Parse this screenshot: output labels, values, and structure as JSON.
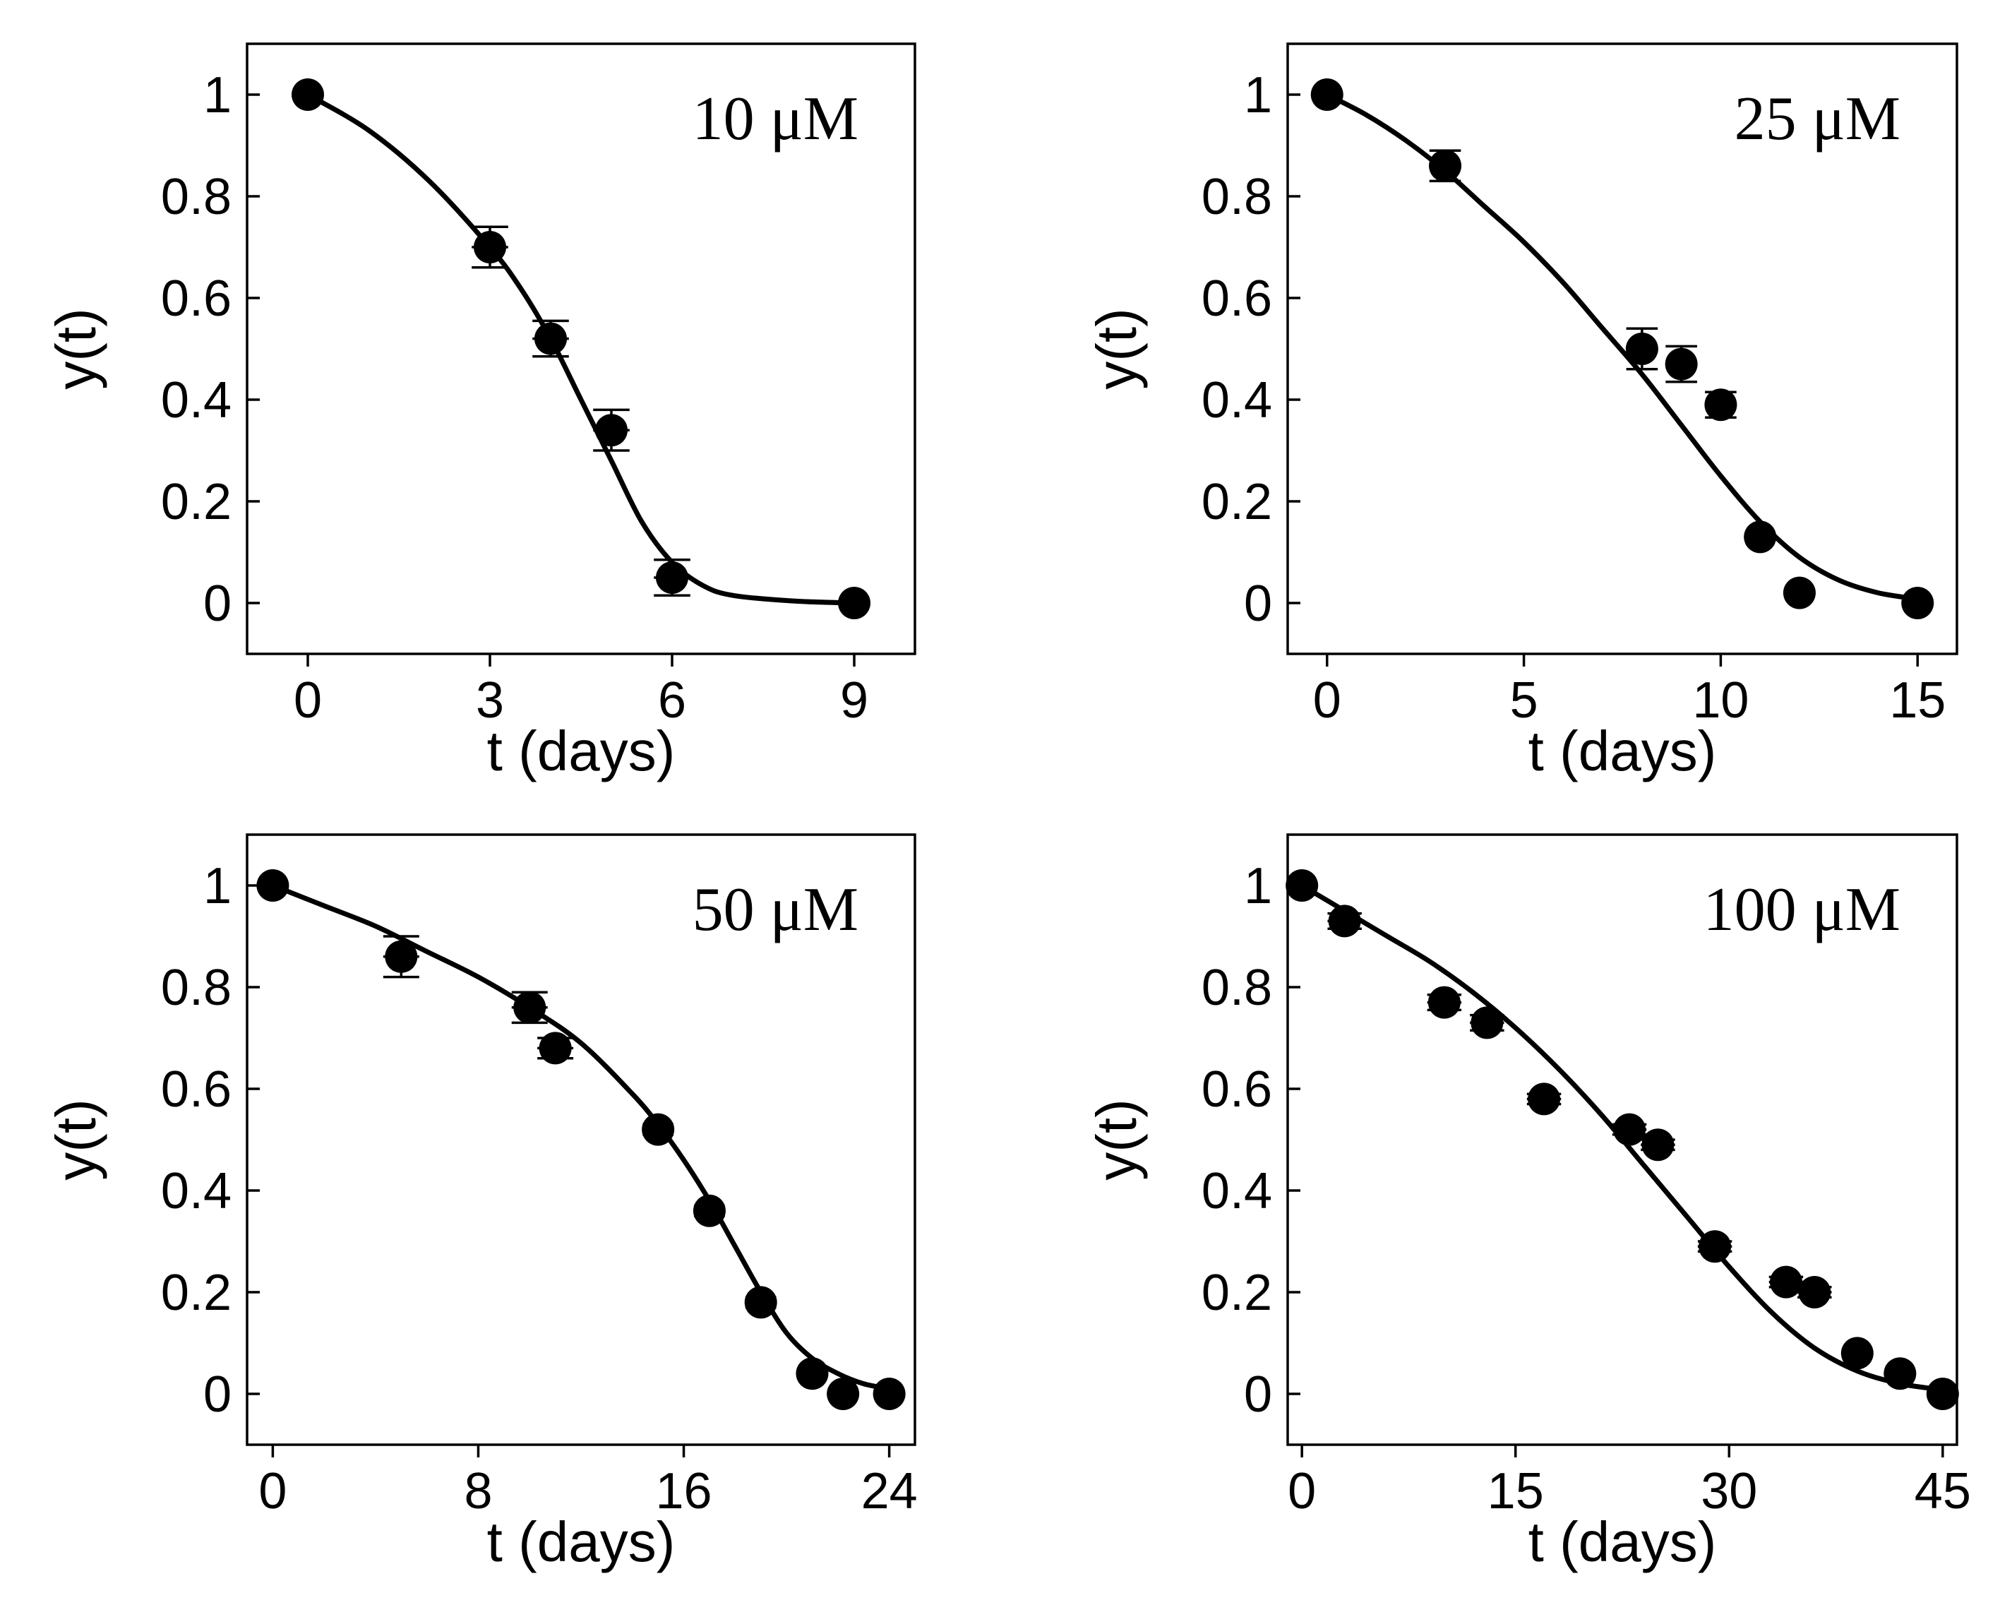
{
  "figure": {
    "description": ""
  },
  "chart_data": [
    {
      "type": "scatter",
      "title": "10 μM",
      "xlabel": "t (days)",
      "ylabel": "y(t)",
      "xlim": [
        -1,
        10
      ],
      "ylim": [
        -0.1,
        1.1
      ],
      "xticks": [
        0,
        3,
        6,
        9
      ],
      "yticks": [
        0,
        0.2,
        0.4,
        0.6,
        0.8,
        1
      ],
      "ytick_labels": [
        "0",
        "0.2",
        "0.4",
        "0.6",
        "0.8",
        "1"
      ],
      "points": [
        {
          "x": 0,
          "y": 1.0,
          "xerr": 0,
          "yerr": 0.005
        },
        {
          "x": 3,
          "y": 0.7,
          "xerr": 0.3,
          "yerr": 0.04
        },
        {
          "x": 4,
          "y": 0.52,
          "xerr": 0.3,
          "yerr": 0.035
        },
        {
          "x": 5,
          "y": 0.34,
          "xerr": 0.3,
          "yerr": 0.04
        },
        {
          "x": 6,
          "y": 0.05,
          "xerr": 0.3,
          "yerr": 0.035
        },
        {
          "x": 9,
          "y": 0.0,
          "xerr": 0.15,
          "yerr": 0.005
        }
      ],
      "fit": {
        "x": [
          0,
          1,
          2,
          3,
          3.5,
          4,
          4.5,
          5,
          5.5,
          6,
          6.5,
          7,
          8,
          9
        ],
        "y": [
          1.0,
          0.93,
          0.83,
          0.7,
          0.62,
          0.52,
          0.4,
          0.28,
          0.16,
          0.08,
          0.035,
          0.015,
          0.004,
          0.0
        ]
      }
    },
    {
      "type": "scatter",
      "title": "25 μM",
      "xlabel": "t (days)",
      "ylabel": "y(t)",
      "xlim": [
        -1,
        16
      ],
      "ylim": [
        -0.1,
        1.1
      ],
      "xticks": [
        0,
        5,
        10,
        15
      ],
      "yticks": [
        0,
        0.2,
        0.4,
        0.6,
        0.8,
        1
      ],
      "ytick_labels": [
        "0",
        "0.2",
        "0.4",
        "0.6",
        "0.8",
        "1"
      ],
      "points": [
        {
          "x": 0,
          "y": 1.0,
          "xerr": 0,
          "yerr": 0.005
        },
        {
          "x": 3,
          "y": 0.86,
          "xerr": 0.4,
          "yerr": 0.03
        },
        {
          "x": 8,
          "y": 0.5,
          "xerr": 0.4,
          "yerr": 0.04
        },
        {
          "x": 9,
          "y": 0.47,
          "xerr": 0.4,
          "yerr": 0.035
        },
        {
          "x": 10,
          "y": 0.39,
          "xerr": 0.4,
          "yerr": 0.025
        },
        {
          "x": 11,
          "y": 0.13,
          "xerr": 0.3,
          "yerr": 0.01
        },
        {
          "x": 12,
          "y": 0.02,
          "xerr": 0.3,
          "yerr": 0.008
        },
        {
          "x": 15,
          "y": 0.0,
          "xerr": 0.2,
          "yerr": 0.005
        }
      ],
      "fit": {
        "x": [
          0,
          1,
          2,
          3,
          4,
          5,
          6,
          7,
          8,
          9,
          10,
          11,
          12,
          13,
          14,
          15
        ],
        "y": [
          1.0,
          0.96,
          0.91,
          0.85,
          0.78,
          0.71,
          0.63,
          0.54,
          0.45,
          0.35,
          0.25,
          0.16,
          0.09,
          0.045,
          0.02,
          0.008
        ]
      }
    },
    {
      "type": "scatter",
      "title": "50 μM",
      "xlabel": "t (days)",
      "ylabel": "y(t)",
      "xlim": [
        -1,
        25
      ],
      "ylim": [
        -0.1,
        1.1
      ],
      "xticks": [
        0,
        8,
        16,
        24
      ],
      "yticks": [
        0,
        0.2,
        0.4,
        0.6,
        0.8,
        1
      ],
      "ytick_labels": [
        "0",
        "0.2",
        "0.4",
        "0.6",
        "0.8",
        "1"
      ],
      "points": [
        {
          "x": 0,
          "y": 1.0,
          "xerr": 0,
          "yerr": 0.005
        },
        {
          "x": 5,
          "y": 0.86,
          "xerr": 0.7,
          "yerr": 0.04
        },
        {
          "x": 10,
          "y": 0.76,
          "xerr": 0.7,
          "yerr": 0.03
        },
        {
          "x": 11,
          "y": 0.68,
          "xerr": 0.7,
          "yerr": 0.02
        },
        {
          "x": 15,
          "y": 0.52,
          "xerr": 0.6,
          "yerr": 0.01
        },
        {
          "x": 17,
          "y": 0.36,
          "xerr": 0.6,
          "yerr": 0.01
        },
        {
          "x": 19,
          "y": 0.18,
          "xerr": 0.6,
          "yerr": 0.01
        },
        {
          "x": 21,
          "y": 0.04,
          "xerr": 0.5,
          "yerr": 0.008
        },
        {
          "x": 22.2,
          "y": 0.0,
          "xerr": 0.4,
          "yerr": 0.005
        },
        {
          "x": 24,
          "y": 0.0,
          "xerr": 0.3,
          "yerr": 0.005
        }
      ],
      "fit": {
        "x": [
          0,
          2,
          4,
          6,
          8,
          10,
          12,
          14,
          15,
          16,
          17,
          18,
          19,
          20,
          21,
          22,
          23,
          24
        ],
        "y": [
          1.0,
          0.96,
          0.92,
          0.87,
          0.82,
          0.76,
          0.69,
          0.59,
          0.53,
          0.46,
          0.38,
          0.29,
          0.2,
          0.12,
          0.07,
          0.04,
          0.02,
          0.01
        ]
      }
    },
    {
      "type": "scatter",
      "title": "100 μM",
      "xlabel": "t (days)",
      "ylabel": "y(t)",
      "xlim": [
        -1,
        46
      ],
      "ylim": [
        -0.1,
        1.1
      ],
      "xticks": [
        0,
        15,
        30,
        45
      ],
      "yticks": [
        0,
        0.2,
        0.4,
        0.6,
        0.8,
        1
      ],
      "ytick_labels": [
        "0",
        "0.2",
        "0.4",
        "0.6",
        "0.8",
        "1"
      ],
      "points": [
        {
          "x": 0,
          "y": 1.0,
          "xerr": 0,
          "yerr": 0.005
        },
        {
          "x": 3,
          "y": 0.93,
          "xerr": 1.2,
          "yerr": 0.015
        },
        {
          "x": 10,
          "y": 0.77,
          "xerr": 1.2,
          "yerr": 0.015
        },
        {
          "x": 13,
          "y": 0.73,
          "xerr": 1.2,
          "yerr": 0.015
        },
        {
          "x": 17,
          "y": 0.58,
          "xerr": 1.2,
          "yerr": 0.01
        },
        {
          "x": 23,
          "y": 0.52,
          "xerr": 1.2,
          "yerr": 0.01
        },
        {
          "x": 25,
          "y": 0.49,
          "xerr": 1.2,
          "yerr": 0.01
        },
        {
          "x": 29,
          "y": 0.29,
          "xerr": 1.2,
          "yerr": 0.01
        },
        {
          "x": 34,
          "y": 0.22,
          "xerr": 1.2,
          "yerr": 0.01
        },
        {
          "x": 36,
          "y": 0.2,
          "xerr": 1.2,
          "yerr": 0.01
        },
        {
          "x": 39,
          "y": 0.08,
          "xerr": 1.0,
          "yerr": 0.008
        },
        {
          "x": 42,
          "y": 0.04,
          "xerr": 1.0,
          "yerr": 0.008
        },
        {
          "x": 45,
          "y": 0.0,
          "xerr": 0.6,
          "yerr": 0.005
        }
      ],
      "fit": {
        "x": [
          0,
          3,
          6,
          9,
          12,
          15,
          18,
          21,
          24,
          27,
          30,
          33,
          36,
          39,
          42,
          45
        ],
        "y": [
          1.0,
          0.95,
          0.9,
          0.85,
          0.79,
          0.72,
          0.64,
          0.55,
          0.45,
          0.35,
          0.25,
          0.16,
          0.09,
          0.045,
          0.02,
          0.008
        ]
      }
    }
  ]
}
